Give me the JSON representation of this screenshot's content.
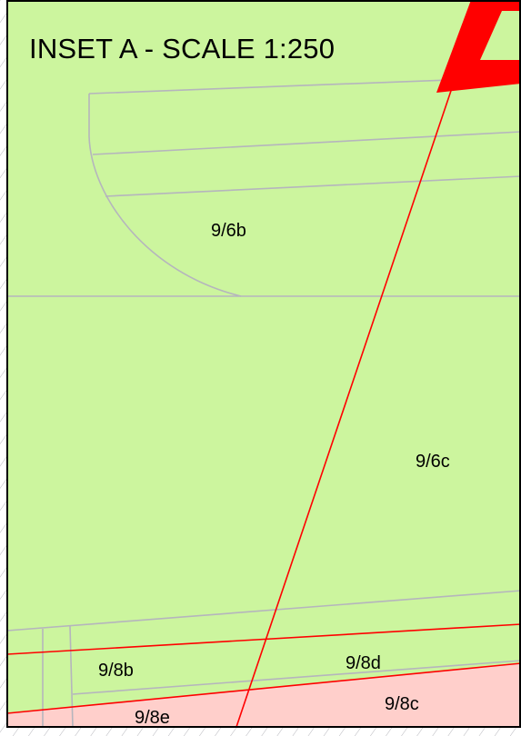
{
  "inset": {
    "title": "INSET A - SCALE 1:250"
  },
  "parcels": {
    "p_9_6b": "9/6b",
    "p_9_6c": "9/6c",
    "p_9_8b": "9/8b",
    "p_9_8d": "9/8d",
    "p_9_8c": "9/8c",
    "p_9_8e": "9/8e"
  },
  "colors": {
    "parcel_green": "#ccf59e",
    "parcel_pink": "#ffcfcb",
    "parcel_boundary": "#b5b5bd",
    "red_line": "#ff0000",
    "hatch": "#b7b7bd",
    "frame": "#000000"
  }
}
